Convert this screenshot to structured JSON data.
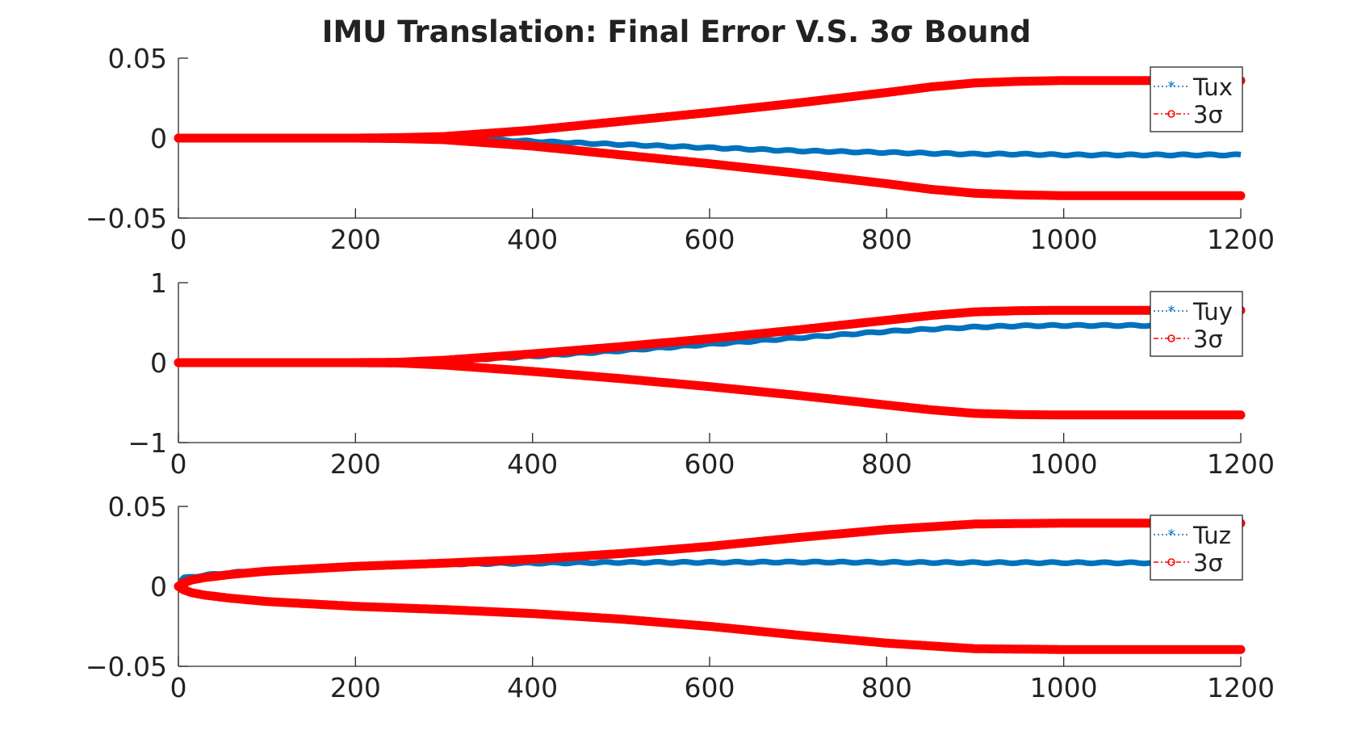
{
  "title": "IMU Translation: Final Error V.S. 3σ Bound",
  "colors": {
    "error_series": "#0072bd",
    "bound_series": "#ff0000",
    "axes": "#262626",
    "background": "#ffffff"
  },
  "chart_data": [
    {
      "type": "line",
      "title": "IMU Translation: Final Error V.S. 3σ Bound",
      "xlabel": "",
      "ylabel": "",
      "xlim": [
        0,
        1200
      ],
      "ylim": [
        -0.05,
        0.05
      ],
      "xticks": [
        0,
        200,
        400,
        600,
        800,
        1000,
        1200
      ],
      "xtick_labels": [
        "0",
        "200",
        "400",
        "600",
        "800",
        "1000",
        "1200"
      ],
      "yticks": [
        -0.05,
        0,
        0.05
      ],
      "ytick_labels": [
        "−0.05",
        "0",
        "0.05"
      ],
      "grid": false,
      "legend_position": "top-right",
      "x": [
        0,
        100,
        200,
        250,
        300,
        350,
        400,
        500,
        600,
        700,
        800,
        850,
        900,
        950,
        1000,
        1100,
        1200
      ],
      "series": [
        {
          "name": "Tux",
          "marker": "asterisk",
          "linestyle": "dotted",
          "color": "#0072bd",
          "values": [
            0,
            0,
            0,
            0,
            0,
            -0.001,
            -0.002,
            -0.004,
            -0.006,
            -0.008,
            -0.009,
            -0.0095,
            -0.01,
            -0.01,
            -0.0105,
            -0.0105,
            -0.0105
          ]
        },
        {
          "name": "3σ",
          "marker": "circle",
          "linestyle": "dash-dot",
          "color": "#ff0000",
          "values": [
            0,
            0,
            0,
            0.0003,
            0.001,
            0.003,
            0.005,
            0.0105,
            0.016,
            0.022,
            0.0285,
            0.032,
            0.0345,
            0.0355,
            0.036,
            0.036,
            0.036
          ],
          "mirror": true
        }
      ]
    },
    {
      "type": "line",
      "xlabel": "",
      "ylabel": "",
      "xlim": [
        0,
        1200
      ],
      "ylim": [
        -1,
        1
      ],
      "xticks": [
        0,
        200,
        400,
        600,
        800,
        1000,
        1200
      ],
      "xtick_labels": [
        "0",
        "200",
        "400",
        "600",
        "800",
        "1000",
        "1200"
      ],
      "yticks": [
        -1,
        0,
        1
      ],
      "ytick_labels": [
        "−1",
        "0",
        "1"
      ],
      "grid": false,
      "legend_position": "top-right",
      "x": [
        0,
        100,
        200,
        250,
        300,
        350,
        400,
        500,
        600,
        700,
        800,
        850,
        900,
        950,
        1000,
        1100,
        1200
      ],
      "series": [
        {
          "name": "Tuy",
          "marker": "asterisk",
          "linestyle": "dotted",
          "color": "#0072bd",
          "values": [
            0,
            0,
            0,
            0.003,
            0.02,
            0.05,
            0.08,
            0.15,
            0.23,
            0.31,
            0.39,
            0.42,
            0.445,
            0.46,
            0.465,
            0.465,
            0.465
          ]
        },
        {
          "name": "3σ",
          "marker": "circle",
          "linestyle": "dash-dot",
          "color": "#ff0000",
          "values": [
            0,
            0,
            0,
            0.005,
            0.03,
            0.07,
            0.11,
            0.2,
            0.3,
            0.41,
            0.53,
            0.59,
            0.635,
            0.65,
            0.655,
            0.655,
            0.655
          ],
          "mirror": true
        }
      ]
    },
    {
      "type": "line",
      "xlabel": "",
      "ylabel": "",
      "xlim": [
        0,
        1200
      ],
      "ylim": [
        -0.05,
        0.05
      ],
      "xticks": [
        0,
        200,
        400,
        600,
        800,
        1000,
        1200
      ],
      "xtick_labels": [
        "0",
        "200",
        "400",
        "600",
        "800",
        "1000",
        "1200"
      ],
      "yticks": [
        -0.05,
        0,
        0.05
      ],
      "ytick_labels": [
        "−0.05",
        "0",
        "0.05"
      ],
      "grid": false,
      "legend_position": "top-right",
      "x": [
        0,
        5,
        15,
        30,
        60,
        100,
        200,
        300,
        400,
        500,
        600,
        700,
        800,
        900,
        1000,
        1100,
        1200
      ],
      "series": [
        {
          "name": "Tuz",
          "marker": "asterisk",
          "linestyle": "dotted",
          "color": "#0072bd",
          "values": [
            0,
            0.005,
            0.006,
            0.007,
            0.0085,
            0.01,
            0.0125,
            0.014,
            0.0145,
            0.015,
            0.015,
            0.0152,
            0.015,
            0.0148,
            0.0148,
            0.0147,
            0.0145
          ]
        },
        {
          "name": "3σ",
          "marker": "circle",
          "linestyle": "dash-dot",
          "color": "#ff0000",
          "values": [
            0,
            0.002,
            0.004,
            0.0055,
            0.0075,
            0.0095,
            0.0125,
            0.0145,
            0.017,
            0.0205,
            0.025,
            0.0305,
            0.0355,
            0.039,
            0.0395,
            0.0395,
            0.0395
          ],
          "mirror": true
        }
      ]
    }
  ]
}
